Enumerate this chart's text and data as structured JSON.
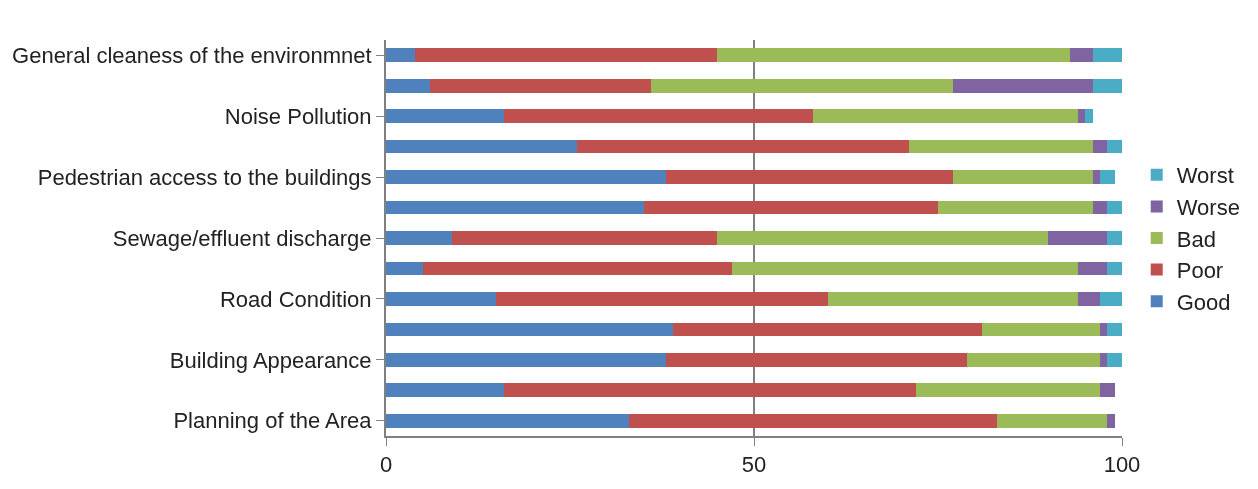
{
  "chart_data": {
    "type": "bar",
    "orientation": "horizontal",
    "stacked": true,
    "categories": [
      "General cleaness of the environmnet",
      null,
      "Noise Pollution",
      null,
      "Pedestrian access to the buildings",
      null,
      "Sewage/effluent discharge",
      null,
      "Road Condition",
      null,
      "Building Appearance",
      null,
      "Planning of the Area"
    ],
    "series": [
      {
        "name": "Good",
        "color": "#4f81bd",
        "values": [
          4,
          6,
          16,
          26,
          38,
          35,
          9,
          5,
          15,
          39,
          38,
          16,
          33
        ]
      },
      {
        "name": "Poor",
        "color": "#c0504d",
        "values": [
          41,
          30,
          42,
          45,
          39,
          40,
          36,
          42,
          45,
          42,
          41,
          56,
          50
        ]
      },
      {
        "name": "Bad",
        "color": "#9bbb59",
        "values": [
          48,
          41,
          36,
          25,
          19,
          21,
          45,
          47,
          34,
          16,
          18,
          25,
          15
        ]
      },
      {
        "name": "Worse",
        "color": "#8064a2",
        "values": [
          3,
          19,
          1,
          2,
          1,
          2,
          8,
          4,
          3,
          1,
          1,
          2,
          1
        ]
      },
      {
        "name": "Worst",
        "color": "#4bacc6",
        "values": [
          4,
          4,
          1,
          2,
          2,
          2,
          2,
          2,
          3,
          2,
          2,
          0,
          0
        ]
      }
    ],
    "xlim": [
      0,
      100
    ],
    "xticks": [
      0,
      50,
      100
    ],
    "grid": "x",
    "legend": "right"
  }
}
